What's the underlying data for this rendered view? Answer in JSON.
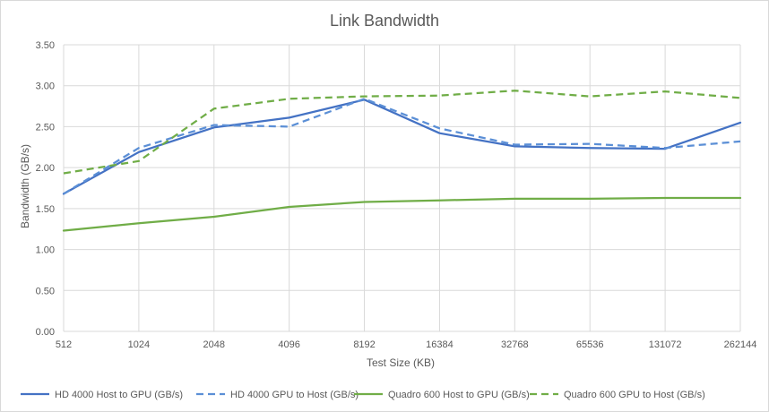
{
  "chart_data": {
    "type": "line",
    "title": "Link Bandwidth",
    "xlabel": "Test Size (KB)",
    "ylabel": "Bandwidth (GB/s)",
    "categories": [
      "512",
      "1024",
      "2048",
      "4096",
      "8192",
      "16384",
      "32768",
      "65536",
      "131072",
      "262144"
    ],
    "ylim": [
      0,
      3.5
    ],
    "yticks": [
      "0.00",
      "0.50",
      "1.00",
      "1.50",
      "2.00",
      "2.50",
      "3.00",
      "3.50"
    ],
    "grid": "horizontal",
    "legend": "bottom",
    "series": [
      {
        "name": "HD 4000 Host to GPU (GB/s)",
        "values": [
          1.68,
          2.19,
          2.49,
          2.61,
          2.83,
          2.42,
          2.26,
          2.24,
          2.23,
          2.55
        ],
        "color": "#4472c4",
        "dash": "solid"
      },
      {
        "name": "HD 4000 GPU to Host (GB/s)",
        "values": [
          1.68,
          2.24,
          2.52,
          2.5,
          2.84,
          2.48,
          2.28,
          2.29,
          2.24,
          2.32
        ],
        "color": "#5b8fd6",
        "dash": "dashed"
      },
      {
        "name": "Quadro 600 Host to GPU (GB/s)",
        "values": [
          1.23,
          1.32,
          1.4,
          1.52,
          1.58,
          1.6,
          1.62,
          1.62,
          1.63,
          1.63
        ],
        "color": "#70ad47",
        "dash": "solid"
      },
      {
        "name": "Quadro 600 GPU to Host (GB/s)",
        "values": [
          1.93,
          2.08,
          2.72,
          2.84,
          2.87,
          2.88,
          2.94,
          2.87,
          2.93,
          2.85
        ],
        "color": "#70ad47",
        "dash": "dashed"
      }
    ]
  }
}
